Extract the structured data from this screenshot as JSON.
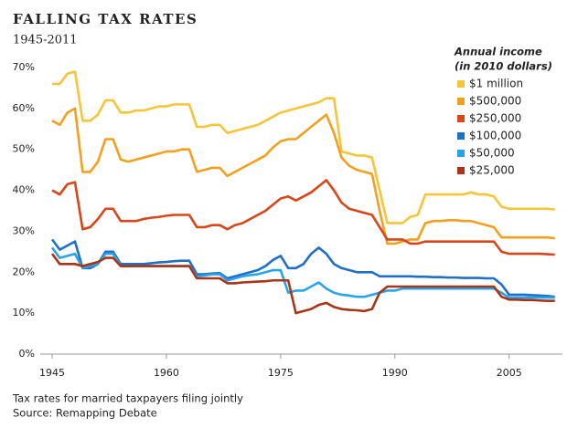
{
  "chart_data": {
    "type": "line",
    "title": "FALLING TAX RATES",
    "subtitle": "1945-2011",
    "legend_title": [
      "Annual income",
      "(in 2010 dollars)"
    ],
    "notes": [
      "Tax rates for married taxpayers filing jointly",
      "Source: Remapping Debate"
    ],
    "x": [
      1945,
      1946,
      1947,
      1948,
      1949,
      1950,
      1951,
      1952,
      1953,
      1954,
      1955,
      1956,
      1957,
      1958,
      1959,
      1960,
      1961,
      1962,
      1963,
      1964,
      1965,
      1966,
      1967,
      1968,
      1969,
      1970,
      1971,
      1972,
      1973,
      1974,
      1975,
      1976,
      1977,
      1978,
      1979,
      1980,
      1981,
      1982,
      1983,
      1984,
      1985,
      1986,
      1987,
      1988,
      1989,
      1990,
      1991,
      1992,
      1993,
      1994,
      1995,
      1996,
      1997,
      1998,
      1999,
      2000,
      2001,
      2002,
      2003,
      2004,
      2005,
      2006,
      2007,
      2008,
      2009,
      2010,
      2011
    ],
    "xlim": [
      1944,
      2012
    ],
    "xticks": [
      1945,
      1960,
      1975,
      1990,
      2005
    ],
    "ylim": [
      0,
      70
    ],
    "yticks": [
      {
        "value": 0,
        "label": "0%"
      },
      {
        "value": 10,
        "label": "10%"
      },
      {
        "value": 20,
        "label": "20%"
      },
      {
        "value": 30,
        "label": "30%"
      },
      {
        "value": 40,
        "label": "40%"
      },
      {
        "value": 50,
        "label": "50%"
      },
      {
        "value": 60,
        "label": "60%"
      },
      {
        "value": 70,
        "label": "70%"
      }
    ],
    "grid": false,
    "series": [
      {
        "name": "$1 million",
        "color": "#f5c53a",
        "values": [
          66,
          66,
          68.5,
          69,
          57,
          57,
          58.5,
          62,
          62,
          59,
          59,
          59.5,
          59.5,
          60,
          60.5,
          60.5,
          61,
          61,
          61,
          55.5,
          55.5,
          56,
          56,
          54,
          54.5,
          55,
          55.5,
          56,
          57,
          58,
          59,
          59.5,
          60,
          60.5,
          61,
          61.5,
          62.5,
          62.5,
          49.5,
          49,
          48.5,
          48.5,
          48,
          40,
          32,
          32,
          32,
          33.5,
          34,
          39,
          39,
          39,
          39,
          39,
          39,
          39.5,
          39,
          39,
          38.5,
          36,
          35.5,
          35.5,
          35.5,
          35.5,
          35.5,
          35.5,
          35.3
        ]
      },
      {
        "name": "$500,000",
        "color": "#f3a01f",
        "values": [
          57,
          56,
          59,
          60,
          44.5,
          44.5,
          47,
          52.5,
          52.5,
          47.5,
          47,
          47.5,
          48,
          48.5,
          49,
          49.5,
          49.5,
          50,
          50,
          44.5,
          45,
          45.5,
          45.5,
          43.5,
          44.5,
          45.5,
          46.5,
          47.5,
          48.5,
          50.5,
          52,
          52.5,
          52.5,
          54,
          55.5,
          57,
          58.5,
          54,
          48,
          46,
          45,
          44.5,
          44,
          35,
          27,
          27,
          27.5,
          28,
          28,
          32,
          32.5,
          32.5,
          32.7,
          32.7,
          32.5,
          32.5,
          32,
          31.5,
          31,
          28.5,
          28.5,
          28.5,
          28.5,
          28.5,
          28.5,
          28.5,
          28.3
        ]
      },
      {
        "name": "$250,000",
        "color": "#d9461a",
        "values": [
          40,
          39,
          41.5,
          42,
          30.5,
          31,
          33,
          35.5,
          35.5,
          32.5,
          32.5,
          32.5,
          33,
          33.3,
          33.5,
          33.8,
          34,
          34,
          34,
          31,
          31,
          31.5,
          31.5,
          30.5,
          31.5,
          32,
          33,
          34,
          35,
          36.5,
          38,
          38.5,
          37.5,
          38.5,
          39.5,
          41,
          42.5,
          40,
          37,
          35.5,
          35,
          34.5,
          34,
          31,
          28,
          28,
          28,
          27,
          27,
          27.5,
          27.5,
          27.5,
          27.5,
          27.5,
          27.5,
          27.5,
          27.5,
          27.5,
          27.5,
          25,
          24.5,
          24.5,
          24.5,
          24.5,
          24.5,
          24.4,
          24.3
        ]
      },
      {
        "name": "$100,000",
        "color": "#1f6fc4",
        "values": [
          28,
          25.5,
          26.5,
          27.5,
          21,
          21,
          22,
          25,
          25,
          22,
          22,
          22,
          22,
          22.2,
          22.4,
          22.5,
          22.7,
          22.8,
          22.8,
          19.5,
          19.5,
          19.7,
          19.8,
          18.5,
          19,
          19.5,
          20,
          20.5,
          21.5,
          23,
          24,
          21,
          21,
          22,
          24.5,
          26,
          24.5,
          22,
          21,
          20.5,
          20,
          20,
          20,
          19,
          19,
          19,
          19,
          19,
          18.9,
          18.9,
          18.8,
          18.8,
          18.7,
          18.7,
          18.6,
          18.6,
          18.6,
          18.5,
          18.5,
          17,
          14.5,
          14.5,
          14.5,
          14.4,
          14.3,
          14.2,
          14
        ]
      },
      {
        "name": "$50,000",
        "color": "#2aa4e8",
        "values": [
          26,
          23.5,
          24,
          24.5,
          21,
          21.5,
          22,
          24.5,
          24.5,
          21.5,
          21.5,
          21.5,
          21.5,
          21.5,
          21.5,
          21.5,
          21.5,
          21.5,
          21.5,
          19,
          19.2,
          19.5,
          19.5,
          18,
          18.5,
          19,
          19.3,
          19.5,
          20,
          20.5,
          20.5,
          15,
          15.5,
          15.5,
          16.5,
          17.5,
          16,
          15,
          14.5,
          14.3,
          14,
          14,
          14.5,
          15,
          15.5,
          15.5,
          16,
          16,
          16,
          16,
          16,
          16,
          16,
          16,
          16,
          16,
          16,
          16,
          16,
          15,
          13.8,
          13.8,
          13.8,
          13.8,
          13.8,
          13.8,
          13.8
        ]
      },
      {
        "name": "$25,000",
        "color": "#a83517",
        "values": [
          24.5,
          22,
          22,
          22,
          21.5,
          22,
          22.5,
          23.5,
          23.5,
          21.5,
          21.5,
          21.5,
          21.5,
          21.5,
          21.5,
          21.5,
          21.5,
          21.5,
          21.5,
          18.5,
          18.5,
          18.5,
          18.5,
          17.3,
          17.3,
          17.5,
          17.6,
          17.7,
          17.8,
          18,
          18,
          18,
          10,
          10.5,
          11,
          12,
          12.5,
          11.5,
          11,
          10.8,
          10.7,
          10.5,
          11,
          15,
          16.5,
          16.5,
          16.5,
          16.5,
          16.5,
          16.5,
          16.5,
          16.5,
          16.5,
          16.5,
          16.5,
          16.5,
          16.5,
          16.5,
          16.5,
          14,
          13.3,
          13.3,
          13.2,
          13.2,
          13.1,
          13,
          13
        ]
      }
    ]
  }
}
